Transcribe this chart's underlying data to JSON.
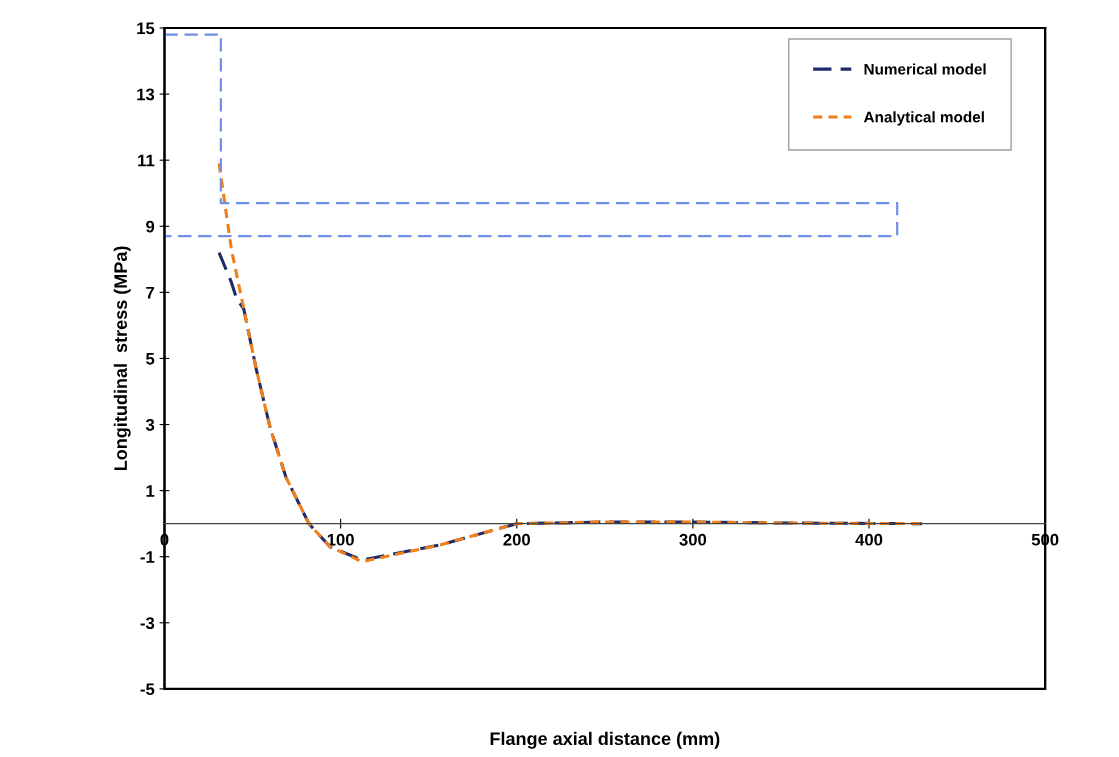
{
  "chart_data": {
    "type": "line",
    "xlabel": "Flange axial distance (mm)",
    "ylabel": "Longitudinal  stress (MPa)",
    "xlim": [
      0,
      500
    ],
    "xticks": [
      0,
      100,
      200,
      300,
      400,
      500
    ],
    "ylim": [
      -5,
      15
    ],
    "yticks": [
      -5,
      -3,
      -1,
      1,
      3,
      5,
      7,
      9,
      11,
      13,
      15
    ],
    "grid": false,
    "legend": "top right",
    "series": [
      {
        "name": "Numerical model",
        "color": "#1f2a6b",
        "line_style": "dashed",
        "x": [
          31,
          38,
          41,
          45,
          52,
          60,
          69,
          82,
          94,
          112,
          156,
          200,
          250,
          300,
          350,
          430
        ],
        "values": [
          8.2,
          7.3,
          6.8,
          6.5,
          4.7,
          2.9,
          1.4,
          0,
          -0.7,
          -1.1,
          -0.65,
          0,
          0.05,
          0.05,
          0.02,
          0
        ]
      },
      {
        "name": "Analytical model",
        "color": "#f07f1a",
        "line_style": "dotted",
        "x": [
          31,
          38,
          45,
          52,
          60,
          69,
          82,
          94,
          112,
          156,
          200,
          250,
          300,
          350,
          430
        ],
        "values": [
          10.9,
          8.3,
          6.5,
          4.7,
          2.9,
          1.4,
          0,
          -0.7,
          -1.15,
          -0.65,
          0,
          0.05,
          0.05,
          0.02,
          0
        ]
      },
      {
        "color": "#6f8fe8",
        "line_style": "dashed",
        "x": [
          0,
          32,
          32,
          416,
          416,
          0
        ],
        "values": [
          14.8,
          14.8,
          9.7,
          9.7,
          8.7,
          8.7
        ]
      }
    ]
  }
}
